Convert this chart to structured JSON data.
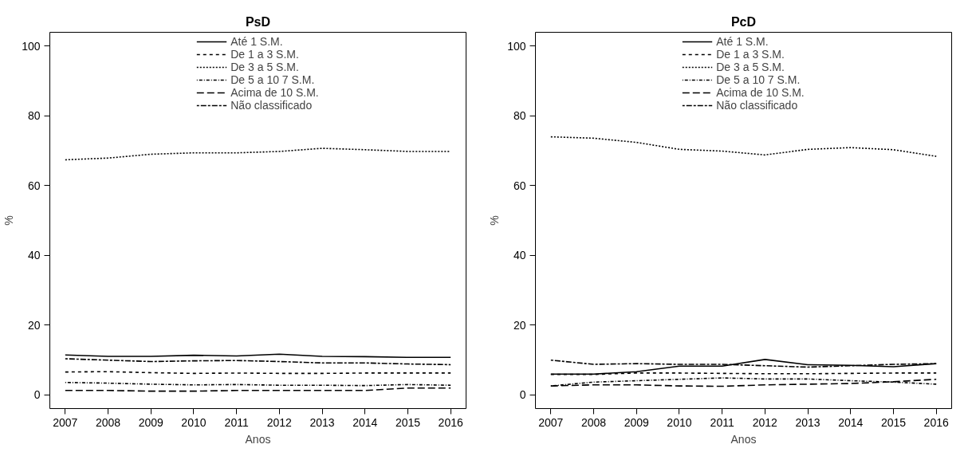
{
  "chart_data": [
    {
      "type": "line",
      "title": "PsD",
      "xlabel": "Anos",
      "ylabel": "%",
      "x": [
        2007,
        2008,
        2009,
        2010,
        2011,
        2012,
        2013,
        2014,
        2015,
        2016
      ],
      "xlim": [
        2006.64,
        2016.36
      ],
      "xticks": [
        2007,
        2008,
        2009,
        2010,
        2011,
        2012,
        2013,
        2014,
        2015,
        2016
      ],
      "ylim": [
        -4,
        104
      ],
      "yticks": [
        0,
        20,
        40,
        60,
        80,
        100
      ],
      "grid": false,
      "legend": "top",
      "marker": "none",
      "series": [
        {
          "name": "Até 1 S.M.",
          "color": "#000000",
          "line_style": "solid",
          "values": [
            11.4,
            11.0,
            11.0,
            11.3,
            11.1,
            11.6,
            11.0,
            10.9,
            10.7,
            10.7
          ]
        },
        {
          "name": "De 1 a 3 S.M.",
          "color": "#000000",
          "line_style": "dashed",
          "values": [
            6.5,
            6.6,
            6.3,
            6.1,
            6.2,
            6.1,
            6.1,
            6.2,
            6.2,
            6.2
          ]
        },
        {
          "name": "De 3 a 5 S.M.",
          "color": "#000000",
          "line_style": "dotted",
          "values": [
            67.4,
            67.9,
            69.0,
            69.4,
            69.4,
            69.8,
            70.7,
            70.3,
            69.8,
            69.8
          ]
        },
        {
          "name": "De 5 a 10 7 S.M.",
          "color": "#000000",
          "line_style": "dotdash",
          "values": [
            3.5,
            3.3,
            3.0,
            2.8,
            2.9,
            2.7,
            2.7,
            2.6,
            2.9,
            2.7
          ]
        },
        {
          "name": "Acima de 10 S.M.",
          "color": "#000000",
          "line_style": "longdash",
          "values": [
            1.2,
            1.2,
            1.0,
            1.0,
            1.2,
            1.2,
            1.2,
            1.2,
            1.9,
            1.9
          ]
        },
        {
          "name": "Não classificado",
          "color": "#000000",
          "line_style": "twodash",
          "values": [
            10.3,
            9.9,
            9.5,
            9.7,
            9.8,
            9.5,
            9.1,
            9.1,
            8.8,
            8.6
          ]
        }
      ]
    },
    {
      "type": "line",
      "title": "PcD",
      "xlabel": "Anos",
      "ylabel": "%",
      "x": [
        2007,
        2008,
        2009,
        2010,
        2011,
        2012,
        2013,
        2014,
        2015,
        2016
      ],
      "xlim": [
        2006.64,
        2016.36
      ],
      "xticks": [
        2007,
        2008,
        2009,
        2010,
        2011,
        2012,
        2013,
        2014,
        2015,
        2016
      ],
      "ylim": [
        -4,
        104
      ],
      "yticks": [
        0,
        20,
        40,
        60,
        80,
        100
      ],
      "grid": false,
      "legend": "top",
      "marker": "none",
      "series": [
        {
          "name": "Até 1 S.M.",
          "color": "#000000",
          "line_style": "solid",
          "values": [
            5.9,
            5.9,
            6.6,
            8.2,
            8.2,
            10.1,
            8.6,
            8.4,
            8.0,
            8.9
          ]
        },
        {
          "name": "De 1 a 3 S.M.",
          "color": "#000000",
          "line_style": "dashed",
          "values": [
            5.8,
            5.8,
            6.2,
            6.2,
            6.1,
            6.0,
            6.0,
            6.1,
            6.2,
            6.2
          ]
        },
        {
          "name": "De 3 a 5 S.M.",
          "color": "#000000",
          "line_style": "dotted",
          "values": [
            74.0,
            73.6,
            72.4,
            70.4,
            69.9,
            68.8,
            70.4,
            70.9,
            70.3,
            68.4
          ]
        },
        {
          "name": "De 5 a 10 7 S.M.",
          "color": "#000000",
          "line_style": "dotdash",
          "values": [
            2.5,
            3.6,
            4.0,
            4.4,
            4.8,
            4.5,
            4.5,
            4.0,
            3.6,
            3.0
          ]
        },
        {
          "name": "Acima de 10 S.M.",
          "color": "#000000",
          "line_style": "longdash",
          "values": [
            2.5,
            2.8,
            2.8,
            2.5,
            2.4,
            2.8,
            3.0,
            3.2,
            3.7,
            4.4
          ]
        },
        {
          "name": "Não classificado",
          "color": "#000000",
          "line_style": "twodash",
          "values": [
            9.9,
            8.7,
            8.9,
            8.7,
            8.7,
            8.3,
            7.9,
            8.3,
            8.7,
            8.9
          ]
        }
      ]
    }
  ]
}
